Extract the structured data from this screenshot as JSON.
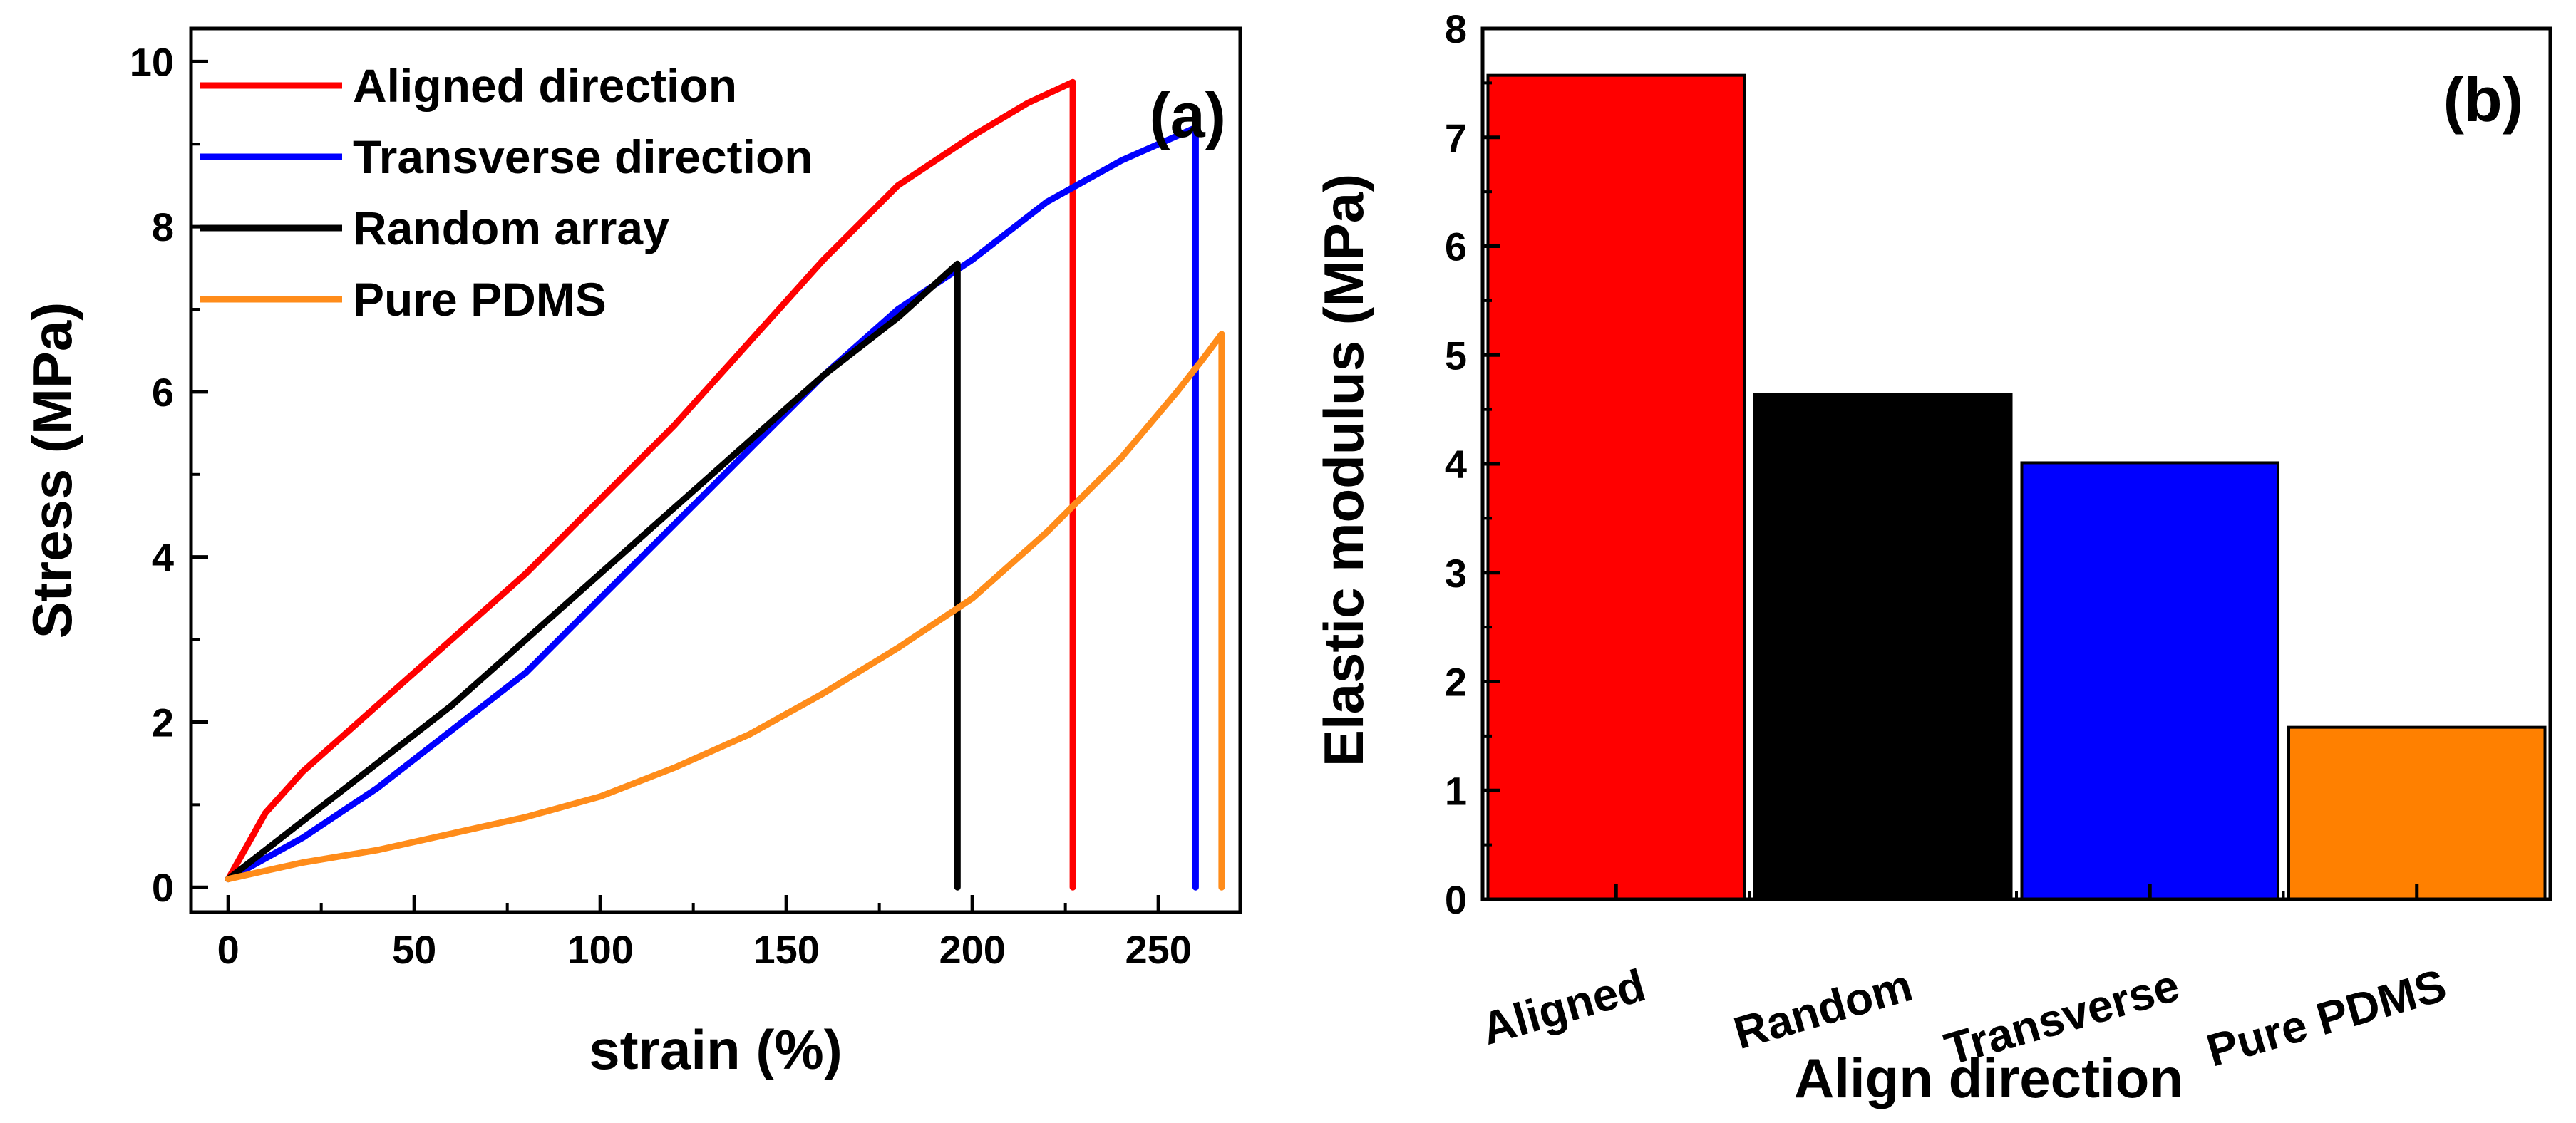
{
  "chart_data": [
    {
      "type": "line",
      "panel_label": "(a)",
      "xlabel": "strain (%)",
      "ylabel": "Stress (MPa)",
      "xlim": [
        -10,
        272
      ],
      "ylim": [
        -0.3,
        10.4
      ],
      "xticks": [
        0,
        50,
        100,
        150,
        200,
        250
      ],
      "yticks": [
        0,
        2,
        4,
        6,
        8,
        10
      ],
      "legend_position": "top-left",
      "series": [
        {
          "name": "Aligned direction",
          "color": "#ff0000",
          "points": [
            [
              0,
              0.1
            ],
            [
              5,
              0.5
            ],
            [
              10,
              0.9
            ],
            [
              20,
              1.4
            ],
            [
              40,
              2.2
            ],
            [
              60,
              3.0
            ],
            [
              80,
              3.8
            ],
            [
              100,
              4.7
            ],
            [
              120,
              5.6
            ],
            [
              140,
              6.6
            ],
            [
              160,
              7.6
            ],
            [
              180,
              8.5
            ],
            [
              200,
              9.1
            ],
            [
              215,
              9.5
            ],
            [
              227,
              9.75
            ],
            [
              227,
              9.75
            ],
            [
              227,
              0
            ]
          ]
        },
        {
          "name": "Transverse direction",
          "color": "#0000ff",
          "points": [
            [
              0,
              0.1
            ],
            [
              20,
              0.6
            ],
            [
              40,
              1.2
            ],
            [
              60,
              1.9
            ],
            [
              80,
              2.6
            ],
            [
              100,
              3.5
            ],
            [
              120,
              4.4
            ],
            [
              140,
              5.3
            ],
            [
              160,
              6.2
            ],
            [
              180,
              7.0
            ],
            [
              200,
              7.6
            ],
            [
              220,
              8.3
            ],
            [
              240,
              8.8
            ],
            [
              260,
              9.2
            ],
            [
              260,
              9.2
            ],
            [
              260,
              0
            ]
          ]
        },
        {
          "name": "Random array",
          "color": "#000000",
          "points": [
            [
              0,
              0.1
            ],
            [
              20,
              0.8
            ],
            [
              40,
              1.5
            ],
            [
              60,
              2.2
            ],
            [
              80,
              3.0
            ],
            [
              100,
              3.8
            ],
            [
              120,
              4.6
            ],
            [
              140,
              5.4
            ],
            [
              160,
              6.2
            ],
            [
              180,
              6.9
            ],
            [
              196,
              7.55
            ],
            [
              196,
              7.55
            ],
            [
              196,
              4.9
            ],
            [
              196,
              0
            ]
          ]
        },
        {
          "name": "Pure PDMS",
          "color": "#ff8c1a",
          "points": [
            [
              0,
              0.1
            ],
            [
              20,
              0.3
            ],
            [
              40,
              0.45
            ],
            [
              60,
              0.65
            ],
            [
              80,
              0.85
            ],
            [
              100,
              1.1
            ],
            [
              120,
              1.45
            ],
            [
              140,
              1.85
            ],
            [
              160,
              2.35
            ],
            [
              180,
              2.9
            ],
            [
              200,
              3.5
            ],
            [
              220,
              4.3
            ],
            [
              240,
              5.2
            ],
            [
              255,
              6.0
            ],
            [
              262,
              6.4
            ],
            [
              267,
              6.7
            ],
            [
              267,
              0
            ]
          ]
        }
      ]
    },
    {
      "type": "bar",
      "panel_label": "(b)",
      "xlabel": "Align direction",
      "ylabel": "Elastic modulus (MPa)",
      "ylim": [
        0,
        8
      ],
      "yticks": [
        0,
        1,
        2,
        3,
        4,
        5,
        6,
        7,
        8
      ],
      "categories": [
        "Aligned",
        "Random",
        "Transverse",
        "Pure PDMS"
      ],
      "values": [
        7.57,
        4.64,
        4.01,
        1.58
      ],
      "colors": [
        "#ff0000",
        "#000000",
        "#0000ff",
        "#ff8000"
      ]
    }
  ]
}
